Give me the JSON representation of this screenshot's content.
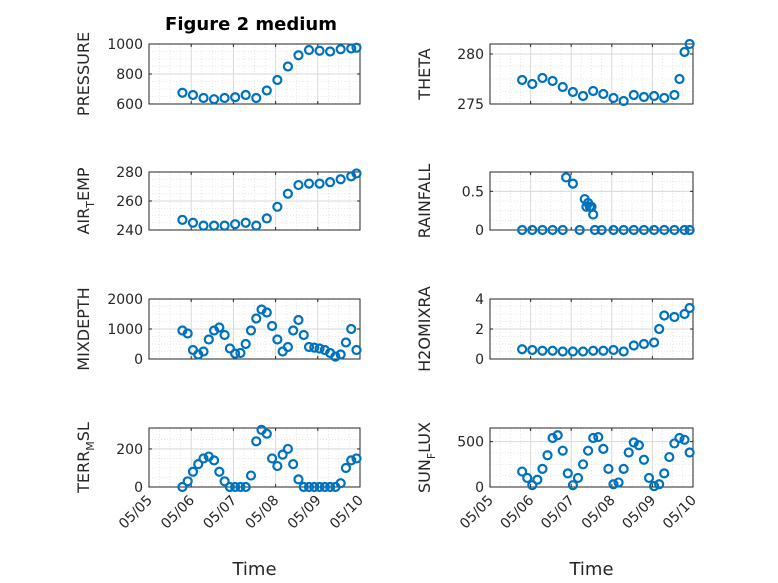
{
  "figure_title": "Figure 2 medium",
  "colors": {
    "marker": "#0072bd",
    "axis": "#262626"
  },
  "chart_data": [
    {
      "type": "scatter",
      "panel": "left-1",
      "ylabel": {
        "main": "PRESSURE",
        "sub": ""
      },
      "ylim": [
        600,
        1000
      ],
      "yticks": [
        600,
        800,
        1000
      ],
      "ytick_labels": [
        "600",
        "800",
        "1000"
      ],
      "xlim": [
        "05/05",
        "05/10"
      ],
      "xtick_labels": [
        "05/05",
        "05/06",
        "05/07",
        "05/08",
        "05/09",
        "05/10"
      ],
      "show_xticklabels": false,
      "xlabel": "",
      "grid": true,
      "x": [
        "05/05 19:00",
        "05/06 01:00",
        "05/06 07:00",
        "05/06 13:00",
        "05/06 19:00",
        "05/07 01:00",
        "05/07 07:00",
        "05/07 13:00",
        "05/07 19:00",
        "05/08 01:00",
        "05/08 07:00",
        "05/08 13:00",
        "05/08 19:00",
        "05/09 01:00",
        "05/09 07:00",
        "05/09 13:00",
        "05/09 19:00",
        "05/09 22:00"
      ],
      "y": [
        675,
        660,
        640,
        632,
        640,
        645,
        660,
        640,
        690,
        760,
        850,
        925,
        960,
        955,
        950,
        965,
        970,
        975
      ]
    },
    {
      "type": "scatter",
      "panel": "right-1",
      "ylabel": {
        "main": "THETA",
        "sub": ""
      },
      "ylim": [
        275,
        281
      ],
      "yticks": [
        275,
        280
      ],
      "ytick_labels": [
        "275",
        "280"
      ],
      "xlim": [
        "05/05",
        "05/10"
      ],
      "xtick_labels": [
        "05/05",
        "05/06",
        "05/07",
        "05/08",
        "05/09",
        "05/10"
      ],
      "show_xticklabels": false,
      "xlabel": "",
      "grid": true,
      "x": [
        "05/05 19:00",
        "05/06 01:00",
        "05/06 07:00",
        "05/06 13:00",
        "05/06 19:00",
        "05/07 01:00",
        "05/07 07:00",
        "05/07 13:00",
        "05/07 19:00",
        "05/08 01:00",
        "05/08 07:00",
        "05/08 13:00",
        "05/08 19:00",
        "05/09 01:00",
        "05/09 07:00",
        "05/09 13:00",
        "05/09 16:00",
        "05/09 19:00",
        "05/09 22:00"
      ],
      "y": [
        277.4,
        277.0,
        277.6,
        277.3,
        276.7,
        276.2,
        275.8,
        276.3,
        276.0,
        275.6,
        275.3,
        275.9,
        275.7,
        275.8,
        275.6,
        275.9,
        277.5,
        280.2,
        281.0
      ]
    },
    {
      "type": "scatter",
      "panel": "left-2",
      "ylabel": {
        "main": "AIR",
        "sub": "T",
        "rest": "EMP"
      },
      "ylim": [
        240,
        280
      ],
      "yticks": [
        240,
        260,
        280
      ],
      "ytick_labels": [
        "240",
        "260",
        "280"
      ],
      "xlim": [
        "05/05",
        "05/10"
      ],
      "xtick_labels": [
        "05/05",
        "05/06",
        "05/07",
        "05/08",
        "05/09",
        "05/10"
      ],
      "show_xticklabels": false,
      "xlabel": "",
      "grid": true,
      "x": [
        "05/05 19:00",
        "05/06 01:00",
        "05/06 07:00",
        "05/06 13:00",
        "05/06 19:00",
        "05/07 01:00",
        "05/07 07:00",
        "05/07 13:00",
        "05/07 19:00",
        "05/08 01:00",
        "05/08 07:00",
        "05/08 13:00",
        "05/08 19:00",
        "05/09 01:00",
        "05/09 07:00",
        "05/09 13:00",
        "05/09 19:00",
        "05/09 22:00"
      ],
      "y": [
        247,
        245,
        243,
        243,
        243,
        244,
        245,
        243,
        248,
        256,
        265,
        271,
        272,
        272,
        273,
        275,
        277,
        279
      ]
    },
    {
      "type": "scatter",
      "panel": "right-2",
      "ylabel": {
        "main": "RAINFALL",
        "sub": ""
      },
      "ylim": [
        0,
        0.75
      ],
      "yticks": [
        0,
        0.5
      ],
      "ytick_labels": [
        "0",
        "0.5"
      ],
      "xlim": [
        "05/05",
        "05/10"
      ],
      "xtick_labels": [
        "05/05",
        "05/06",
        "05/07",
        "05/08",
        "05/09",
        "05/10"
      ],
      "show_xticklabels": false,
      "xlabel": "",
      "grid": true,
      "x": [
        "05/05 19:00",
        "05/06 01:00",
        "05/06 07:00",
        "05/06 13:00",
        "05/06 19:00",
        "05/06 21:00",
        "05/07 01:00",
        "05/07 05:00",
        "05/07 08:00",
        "05/07 09:00",
        "05/07 10:00",
        "05/07 11:00",
        "05/07 12:00",
        "05/07 13:00",
        "05/07 14:00",
        "05/07 18:00",
        "05/08 01:00",
        "05/08 07:00",
        "05/08 13:00",
        "05/08 19:00",
        "05/09 01:00",
        "05/09 07:00",
        "05/09 13:00",
        "05/09 19:00",
        "05/09 22:00"
      ],
      "y": [
        0,
        0,
        0,
        0,
        0,
        0.68,
        0.6,
        0,
        0.4,
        0.3,
        0.35,
        0.3,
        0.3,
        0.2,
        0,
        0,
        0,
        0,
        0,
        0,
        0,
        0,
        0,
        0,
        0
      ]
    },
    {
      "type": "scatter",
      "panel": "left-3",
      "ylabel": {
        "main": "MIXDEPTH",
        "sub": ""
      },
      "ylim": [
        0,
        2000
      ],
      "yticks": [
        0,
        1000,
        2000
      ],
      "ytick_labels": [
        "0",
        "1000",
        "2000"
      ],
      "xlim": [
        "05/05",
        "05/10"
      ],
      "xtick_labels": [
        "05/05",
        "05/06",
        "05/07",
        "05/08",
        "05/09",
        "05/10"
      ],
      "show_xticklabels": false,
      "xlabel": "",
      "grid": true,
      "x": [
        "05/05 19:00",
        "05/05 22:00",
        "05/06 01:00",
        "05/06 04:00",
        "05/06 07:00",
        "05/06 10:00",
        "05/06 13:00",
        "05/06 16:00",
        "05/06 19:00",
        "05/06 22:00",
        "05/07 01:00",
        "05/07 04:00",
        "05/07 07:00",
        "05/07 10:00",
        "05/07 13:00",
        "05/07 16:00",
        "05/07 19:00",
        "05/07 22:00",
        "05/08 01:00",
        "05/08 04:00",
        "05/08 07:00",
        "05/08 10:00",
        "05/08 13:00",
        "05/08 16:00",
        "05/08 19:00",
        "05/08 22:00",
        "05/09 01:00",
        "05/09 04:00",
        "05/09 07:00",
        "05/09 10:00",
        "05/09 13:00",
        "05/09 16:00",
        "05/09 19:00",
        "05/09 22:00"
      ],
      "y": [
        950,
        850,
        300,
        150,
        250,
        650,
        950,
        1050,
        800,
        350,
        180,
        200,
        500,
        950,
        1350,
        1650,
        1550,
        1100,
        650,
        250,
        400,
        950,
        1300,
        800,
        400,
        380,
        350,
        300,
        200,
        80,
        150,
        550,
        1000,
        300
      ]
    },
    {
      "type": "scatter",
      "panel": "right-3",
      "ylabel": {
        "main": "H2OMIXRA",
        "sub": ""
      },
      "ylim": [
        0,
        4
      ],
      "yticks": [
        0,
        2,
        4
      ],
      "ytick_labels": [
        "0",
        "2",
        "4"
      ],
      "xlim": [
        "05/05",
        "05/10"
      ],
      "xtick_labels": [
        "05/05",
        "05/06",
        "05/07",
        "05/08",
        "05/09",
        "05/10"
      ],
      "show_xticklabels": false,
      "xlabel": "",
      "grid": true,
      "x": [
        "05/05 19:00",
        "05/06 01:00",
        "05/06 07:00",
        "05/06 13:00",
        "05/06 19:00",
        "05/07 01:00",
        "05/07 07:00",
        "05/07 13:00",
        "05/07 19:00",
        "05/08 01:00",
        "05/08 07:00",
        "05/08 13:00",
        "05/08 19:00",
        "05/09 01:00",
        "05/09 04:00",
        "05/09 07:00",
        "05/09 13:00",
        "05/09 19:00",
        "05/09 22:00"
      ],
      "y": [
        0.65,
        0.6,
        0.55,
        0.55,
        0.5,
        0.5,
        0.5,
        0.55,
        0.55,
        0.6,
        0.5,
        0.9,
        1.0,
        1.1,
        2.0,
        2.9,
        2.8,
        3.0,
        3.4
      ]
    },
    {
      "type": "scatter",
      "panel": "left-4",
      "ylabel": {
        "main": "TERR",
        "sub": "M",
        "rest": "SL"
      },
      "ylim": [
        0,
        310
      ],
      "yticks": [
        0,
        200
      ],
      "ytick_labels": [
        "0",
        "200"
      ],
      "xlim": [
        "05/05",
        "05/10"
      ],
      "xtick_labels": [
        "05/05",
        "05/06",
        "05/07",
        "05/08",
        "05/09",
        "05/10"
      ],
      "show_xticklabels": true,
      "xlabel": "Time",
      "grid": true,
      "x": [
        "05/05 19:00",
        "05/05 22:00",
        "05/06 01:00",
        "05/06 04:00",
        "05/06 07:00",
        "05/06 10:00",
        "05/06 13:00",
        "05/06 16:00",
        "05/06 19:00",
        "05/06 22:00",
        "05/07 01:00",
        "05/07 04:00",
        "05/07 07:00",
        "05/07 10:00",
        "05/07 13:00",
        "05/07 16:00",
        "05/07 19:00",
        "05/07 22:00",
        "05/08 01:00",
        "05/08 04:00",
        "05/08 07:00",
        "05/08 10:00",
        "05/08 13:00",
        "05/08 16:00",
        "05/08 19:00",
        "05/08 22:00",
        "05/09 01:00",
        "05/09 04:00",
        "05/09 07:00",
        "05/09 10:00",
        "05/09 13:00",
        "05/09 16:00",
        "05/09 19:00",
        "05/09 22:00"
      ],
      "y": [
        0,
        30,
        80,
        120,
        150,
        160,
        140,
        80,
        30,
        0,
        0,
        0,
        0,
        60,
        240,
        300,
        280,
        150,
        110,
        170,
        200,
        120,
        40,
        0,
        0,
        0,
        0,
        0,
        0,
        0,
        20,
        100,
        140,
        150
      ]
    },
    {
      "type": "scatter",
      "panel": "right-4",
      "ylabel": {
        "main": "SUN",
        "sub": "F",
        "rest": "LUX"
      },
      "ylim": [
        0,
        650
      ],
      "yticks": [
        0,
        500
      ],
      "ytick_labels": [
        "0",
        "500"
      ],
      "xlim": [
        "05/05",
        "05/10"
      ],
      "xtick_labels": [
        "05/05",
        "05/06",
        "05/07",
        "05/08",
        "05/09",
        "05/10"
      ],
      "show_xticklabels": true,
      "xlabel": "Time",
      "grid": true,
      "x": [
        "05/05 19:00",
        "05/05 22:00",
        "05/06 01:00",
        "05/06 04:00",
        "05/06 07:00",
        "05/06 10:00",
        "05/06 13:00",
        "05/06 16:00",
        "05/06 19:00",
        "05/06 22:00",
        "05/07 01:00",
        "05/07 04:00",
        "05/07 07:00",
        "05/07 10:00",
        "05/07 13:00",
        "05/07 16:00",
        "05/07 19:00",
        "05/07 22:00",
        "05/08 01:00",
        "05/08 04:00",
        "05/08 07:00",
        "05/08 10:00",
        "05/08 13:00",
        "05/08 16:00",
        "05/08 19:00",
        "05/08 22:00",
        "05/09 01:00",
        "05/09 04:00",
        "05/09 07:00",
        "05/09 10:00",
        "05/09 13:00",
        "05/09 16:00",
        "05/09 19:00",
        "05/09 22:00"
      ],
      "y": [
        170,
        100,
        20,
        80,
        200,
        350,
        540,
        570,
        400,
        150,
        20,
        100,
        250,
        400,
        540,
        550,
        420,
        200,
        30,
        50,
        200,
        380,
        490,
        460,
        300,
        100,
        10,
        30,
        150,
        330,
        480,
        540,
        520,
        380
      ]
    }
  ]
}
